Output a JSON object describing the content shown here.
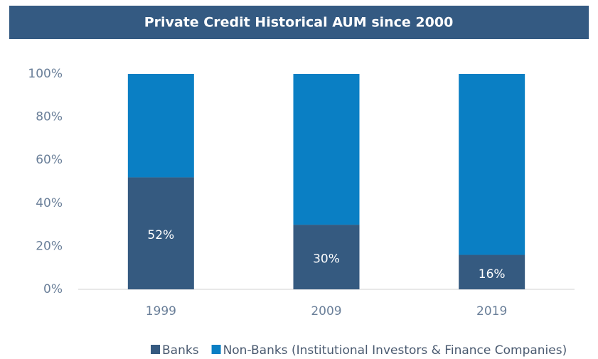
{
  "chart_data": {
    "type": "stacked_bar",
    "title": "Private Credit Historical AUM since 2000",
    "categories": [
      "1999",
      "2009",
      "2019"
    ],
    "series": [
      {
        "name": "Banks",
        "color": "#355a80",
        "values": [
          52,
          30,
          16
        ],
        "value_labels": [
          "52%",
          "30%",
          "16%"
        ]
      },
      {
        "name": "Non-Banks (Institutional Investors & Finance Companies)",
        "color": "#0a7fc4",
        "values": [
          48,
          70,
          84
        ]
      }
    ],
    "ylim": [
      0,
      100
    ],
    "yticks": [
      {
        "value": 0,
        "label": "0%"
      },
      {
        "value": 20,
        "label": "20%"
      },
      {
        "value": 40,
        "label": "40%"
      },
      {
        "value": 60,
        "label": "60%"
      },
      {
        "value": 80,
        "label": "80%"
      },
      {
        "value": 100,
        "label": "100%"
      }
    ],
    "grid": false,
    "legend": "bottom"
  }
}
